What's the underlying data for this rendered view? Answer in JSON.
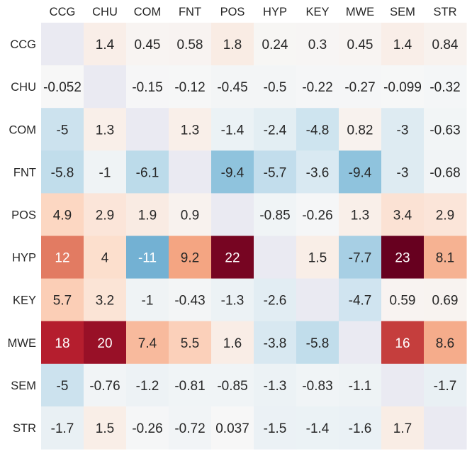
{
  "chart_data": {
    "type": "heatmap",
    "title": "",
    "xlabel": "",
    "ylabel": "",
    "x_labels": [
      "CCG",
      "CHU",
      "COM",
      "FNT",
      "POS",
      "HYP",
      "KEY",
      "MWE",
      "SEM",
      "STR"
    ],
    "y_labels": [
      "CCG",
      "CHU",
      "COM",
      "FNT",
      "POS",
      "HYP",
      "KEY",
      "MWE",
      "SEM",
      "STR"
    ],
    "values": [
      [
        null,
        1.4,
        0.45,
        0.58,
        1.8,
        0.24,
        0.3,
        0.45,
        1.4,
        0.84
      ],
      [
        -0.052,
        null,
        -0.15,
        -0.12,
        -0.45,
        -0.5,
        -0.22,
        -0.27,
        -0.099,
        -0.32
      ],
      [
        -5,
        1.3,
        null,
        1.3,
        -1.4,
        -2.4,
        -4.8,
        0.82,
        -3,
        -0.63
      ],
      [
        -5.8,
        -1,
        -6.1,
        null,
        -9.4,
        -5.7,
        -3.6,
        -9.4,
        -3,
        -0.68
      ],
      [
        4.9,
        2.9,
        1.9,
        0.9,
        null,
        -0.85,
        -0.26,
        1.3,
        3.4,
        2.9
      ],
      [
        12,
        4,
        -11,
        9.2,
        22,
        null,
        1.5,
        -7.7,
        23,
        8.1
      ],
      [
        5.7,
        3.2,
        -1,
        -0.43,
        -1.3,
        -2.6,
        null,
        -4.7,
        0.59,
        0.69
      ],
      [
        18,
        20,
        7.4,
        5.5,
        1.6,
        -3.8,
        -5.8,
        null,
        16,
        8.6
      ],
      [
        -5,
        -0.76,
        -1.2,
        -0.81,
        -0.85,
        -1.3,
        -0.83,
        -1.1,
        null,
        -1.7
      ],
      [
        -1.7,
        1.5,
        -0.26,
        -0.72,
        0.037,
        -1.5,
        -1.4,
        -1.6,
        1.7,
        null
      ]
    ],
    "display_labels": [
      [
        "",
        "1.4",
        "0.45",
        "0.58",
        "1.8",
        "0.24",
        "0.3",
        "0.45",
        "1.4",
        "0.84"
      ],
      [
        "-0.052",
        "",
        "-0.15",
        "-0.12",
        "-0.45",
        "-0.5",
        "-0.22",
        "-0.27",
        "-0.099",
        "-0.32"
      ],
      [
        "-5",
        "1.3",
        "",
        "1.3",
        "-1.4",
        "-2.4",
        "-4.8",
        "0.82",
        "-3",
        "-0.63"
      ],
      [
        "-5.8",
        "-1",
        "-6.1",
        "",
        "-9.4",
        "-5.7",
        "-3.6",
        "-9.4",
        "-3",
        "-0.68"
      ],
      [
        "4.9",
        "2.9",
        "1.9",
        "0.9",
        "",
        "-0.85",
        "-0.26",
        "1.3",
        "3.4",
        "2.9"
      ],
      [
        "12",
        "4",
        "-11",
        "9.2",
        "22",
        "",
        "1.5",
        "-7.7",
        "23",
        "8.1"
      ],
      [
        "5.7",
        "3.2",
        "-1",
        "-0.43",
        "-1.3",
        "-2.6",
        "",
        "-4.7",
        "0.59",
        "0.69"
      ],
      [
        "18",
        "20",
        "7.4",
        "5.5",
        "1.6",
        "-3.8",
        "-5.8",
        "",
        "16",
        "8.6"
      ],
      [
        "-5",
        "-0.76",
        "-1.2",
        "-0.81",
        "-0.85",
        "-1.3",
        "-0.83",
        "-1.1",
        "",
        "-1.7"
      ],
      [
        "-1.7",
        "1.5",
        "-0.26",
        "-0.72",
        "0.037",
        "-1.5",
        "-1.4",
        "-1.6",
        "1.7",
        ""
      ]
    ],
    "color_scale": {
      "colormap": "RdBu_r diverging",
      "center": 0,
      "vmin": -23,
      "vmax": 23
    },
    "diagonal_color": "#eaeaf2",
    "grid": false,
    "legend": "none"
  }
}
